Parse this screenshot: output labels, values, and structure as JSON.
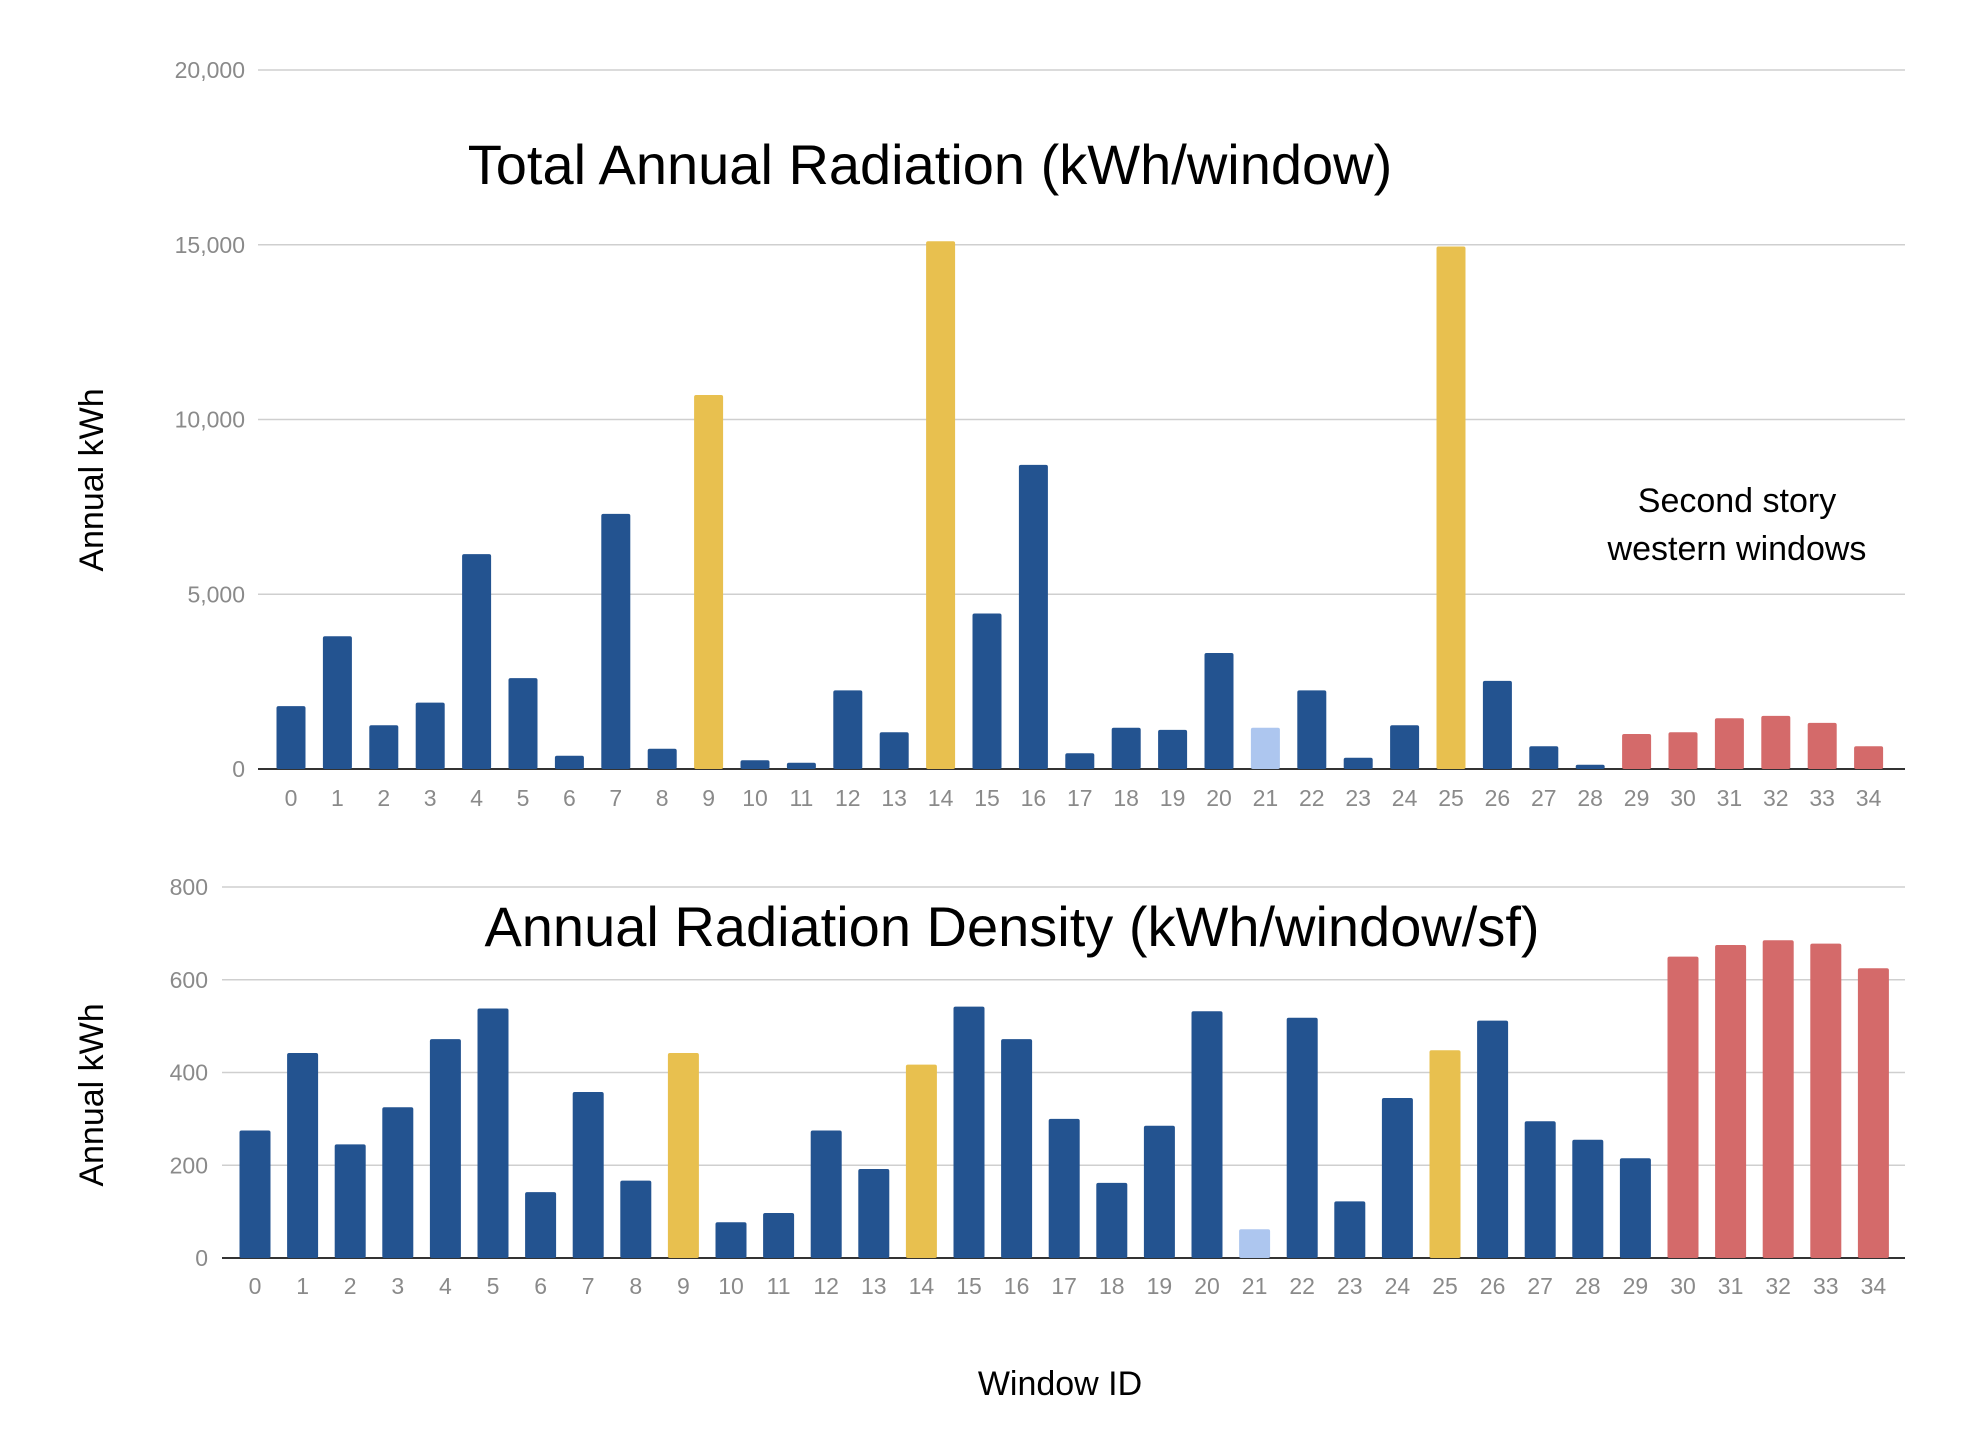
{
  "colors": {
    "blue": "#235390",
    "yellow": "#e8c04f",
    "light_blue": "#adc6ef",
    "red": "#d46a6a"
  },
  "xlabel": "Window ID",
  "annotation": {
    "line1": "Second story",
    "line2": "western windows"
  },
  "chart_data": [
    {
      "type": "bar",
      "title": "Total Annual Radiation (kWh/window)",
      "ylabel": "Annual kWh",
      "xlabel": "Window ID",
      "ylim": [
        0,
        20000
      ],
      "yticks": [
        0,
        5000,
        10000,
        15000,
        20000
      ],
      "ytick_labels": [
        "0",
        "5,000",
        "10,000",
        "15,000",
        "20,000"
      ],
      "categories": [
        "0",
        "1",
        "2",
        "3",
        "4",
        "5",
        "6",
        "7",
        "8",
        "9",
        "10",
        "11",
        "12",
        "13",
        "14",
        "15",
        "16",
        "17",
        "18",
        "19",
        "20",
        "21",
        "22",
        "23",
        "24",
        "25",
        "26",
        "27",
        "28",
        "29",
        "30",
        "31",
        "32",
        "33",
        "34"
      ],
      "values": [
        1800,
        3800,
        1250,
        1900,
        6150,
        2600,
        380,
        7300,
        580,
        10700,
        250,
        180,
        2250,
        1050,
        15100,
        4450,
        8700,
        450,
        1180,
        1120,
        3320,
        1180,
        2250,
        320,
        1250,
        14950,
        2520,
        650,
        120,
        1000,
        1050,
        1450,
        1520,
        1320,
        650
      ],
      "bar_colors": [
        "blue",
        "blue",
        "blue",
        "blue",
        "blue",
        "blue",
        "blue",
        "blue",
        "blue",
        "yellow",
        "blue",
        "blue",
        "blue",
        "blue",
        "yellow",
        "blue",
        "blue",
        "blue",
        "blue",
        "blue",
        "blue",
        "light_blue",
        "blue",
        "blue",
        "blue",
        "yellow",
        "blue",
        "blue",
        "blue",
        "red",
        "red",
        "red",
        "red",
        "red",
        "red"
      ]
    },
    {
      "type": "bar",
      "title": "Annual Radiation Density (kWh/window/sf)",
      "ylabel": "Annual kWh",
      "xlabel": "Window ID",
      "ylim": [
        0,
        800
      ],
      "yticks": [
        0,
        200,
        400,
        600,
        800
      ],
      "ytick_labels": [
        "0",
        "200",
        "400",
        "600",
        "800"
      ],
      "categories": [
        "0",
        "1",
        "2",
        "3",
        "4",
        "5",
        "6",
        "7",
        "8",
        "9",
        "10",
        "11",
        "12",
        "13",
        "14",
        "15",
        "16",
        "17",
        "18",
        "19",
        "20",
        "21",
        "22",
        "23",
        "24",
        "25",
        "26",
        "27",
        "28",
        "29",
        "30",
        "31",
        "32",
        "33",
        "34"
      ],
      "values": [
        275,
        442,
        245,
        325,
        472,
        538,
        142,
        358,
        167,
        442,
        77,
        97,
        275,
        192,
        417,
        542,
        472,
        300,
        162,
        285,
        532,
        62,
        518,
        122,
        345,
        448,
        512,
        295,
        255,
        215,
        650,
        675,
        685,
        678,
        625
      ],
      "bar_colors": [
        "blue",
        "blue",
        "blue",
        "blue",
        "blue",
        "blue",
        "blue",
        "blue",
        "blue",
        "yellow",
        "blue",
        "blue",
        "blue",
        "blue",
        "yellow",
        "blue",
        "blue",
        "blue",
        "blue",
        "blue",
        "blue",
        "light_blue",
        "blue",
        "blue",
        "blue",
        "yellow",
        "blue",
        "blue",
        "blue",
        "blue",
        "red",
        "red",
        "red",
        "red",
        "red"
      ]
    }
  ]
}
